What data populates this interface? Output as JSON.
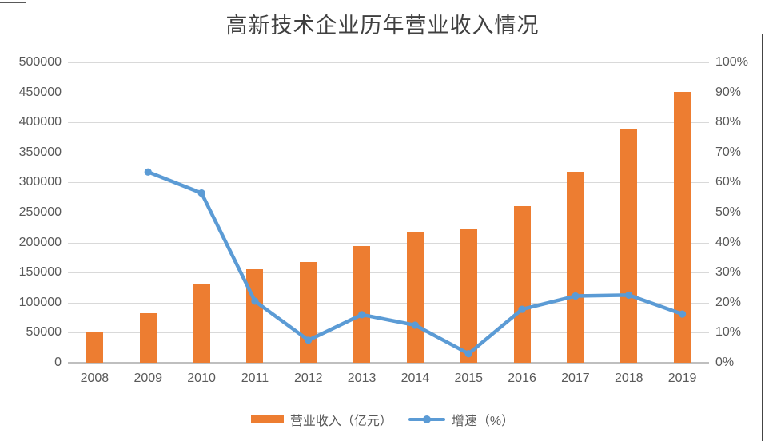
{
  "title": "高新技术企业历年营业收入情况",
  "colors": {
    "bar": "#ED7D31",
    "line": "#5B9BD5",
    "gridline": "#D9D9D9",
    "axis_line": "#BFBFBF",
    "tick_text": "#595959",
    "title_text": "#404040"
  },
  "legend": {
    "items": [
      {
        "label": "营业收入（亿元）",
        "swatch": "bar"
      },
      {
        "label": "增速（%）",
        "swatch": "line"
      }
    ]
  },
  "chart_data": {
    "type": "combo",
    "title": "高新技术企业历年营业收入情况",
    "categories": [
      "2008",
      "2009",
      "2010",
      "2011",
      "2012",
      "2013",
      "2014",
      "2015",
      "2016",
      "2017",
      "2018",
      "2019"
    ],
    "series": [
      {
        "name": "营业收入（亿元）",
        "type": "bar",
        "axis": "left",
        "values": [
          51000,
          83000,
          130000,
          156000,
          167000,
          194000,
          217000,
          222000,
          261000,
          318000,
          389000,
          451000
        ]
      },
      {
        "name": "增速（%）",
        "type": "line",
        "axis": "right",
        "values": [
          null,
          63.5,
          56.5,
          20.5,
          7.5,
          16,
          12.5,
          3,
          17.8,
          22.2,
          22.5,
          16.2
        ]
      }
    ],
    "left_axis": {
      "min": 0,
      "max": 500000,
      "step": 50000,
      "tick_labels": [
        "0",
        "50000",
        "100000",
        "150000",
        "200000",
        "250000",
        "300000",
        "350000",
        "400000",
        "450000",
        "500000"
      ]
    },
    "right_axis": {
      "min": 0,
      "max": 100,
      "step": 10,
      "tick_labels": [
        "0%",
        "10%",
        "20%",
        "30%",
        "40%",
        "50%",
        "60%",
        "70%",
        "80%",
        "90%",
        "100%"
      ]
    },
    "grid": true,
    "legend_position": "bottom"
  }
}
